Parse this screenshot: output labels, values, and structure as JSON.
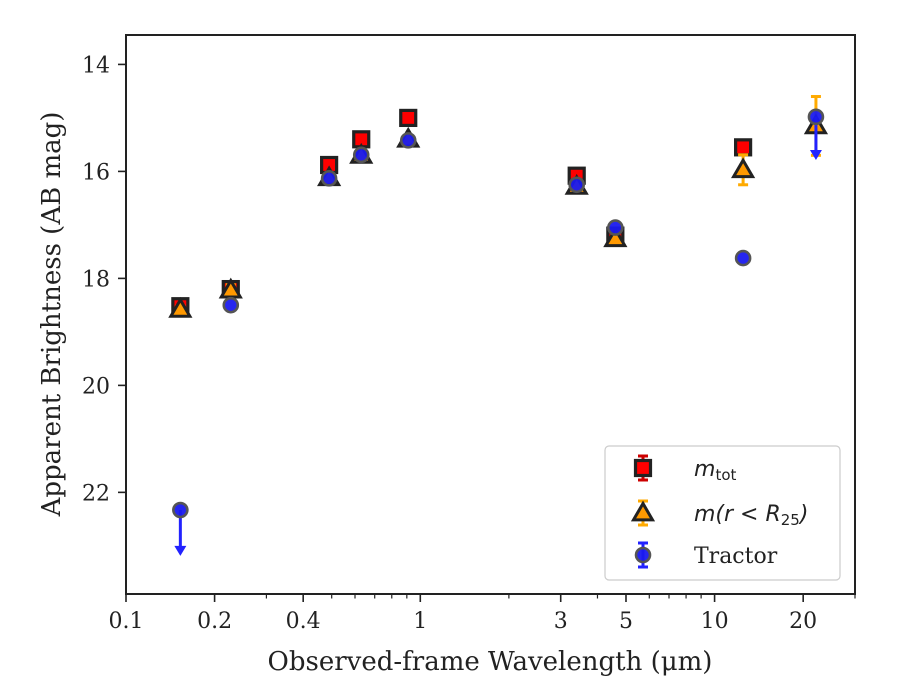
{
  "chart_data": {
    "type": "scatter",
    "title": "",
    "xlabel": "Observed-frame Wavelength (μm)",
    "ylabel": "Apparent Brightness (AB mag)",
    "xscale": "log",
    "xlim": [
      0.1,
      30
    ],
    "ylim": [
      23.9,
      13.45
    ],
    "y_inverted": true,
    "grid": false,
    "legend_position": "lower-right",
    "x_ticks": [
      {
        "value": 0.1,
        "label": "0.1"
      },
      {
        "value": 0.2,
        "label": "0.2"
      },
      {
        "value": 0.4,
        "label": "0.4"
      },
      {
        "value": 1,
        "label": "1"
      },
      {
        "value": 3,
        "label": "3"
      },
      {
        "value": 5,
        "label": "5"
      },
      {
        "value": 10,
        "label": "10"
      },
      {
        "value": 20,
        "label": "20"
      }
    ],
    "y_ticks": [
      {
        "value": 14,
        "label": "14"
      },
      {
        "value": 16,
        "label": "16"
      },
      {
        "value": 18,
        "label": "18"
      },
      {
        "value": 20,
        "label": "20"
      },
      {
        "value": 22,
        "label": "22"
      }
    ],
    "series": [
      {
        "name": "m_tot",
        "legend_main": "m",
        "legend_sub": "tot",
        "marker": "square",
        "face_color": "#ff0000",
        "edge_color": "#222222",
        "error_color": "#cc0000",
        "points": [
          {
            "x": 0.153,
            "y": 18.52,
            "err": 0.06
          },
          {
            "x": 0.227,
            "y": 18.2,
            "err": 0.05
          },
          {
            "x": 0.49,
            "y": 15.88,
            "err": 0.04
          },
          {
            "x": 0.63,
            "y": 15.4,
            "err": 0.04
          },
          {
            "x": 0.91,
            "y": 15.0,
            "err": 0.04
          },
          {
            "x": 3.4,
            "y": 16.08,
            "err": 0.04
          },
          {
            "x": 4.6,
            "y": 17.2,
            "err": 0.05
          },
          {
            "x": 12.5,
            "y": 15.55,
            "err": 0.05
          }
        ]
      },
      {
        "name": "m(r < R_25)",
        "legend_main": "m(r < R",
        "legend_sub": "25",
        "legend_tail": ")",
        "marker": "triangle",
        "face_color": "#ff9900",
        "edge_color": "#222222",
        "error_color": "#ffaa00",
        "points": [
          {
            "x": 0.153,
            "y": 18.58,
            "err": 0.06
          },
          {
            "x": 0.227,
            "y": 18.22,
            "err": 0.1
          },
          {
            "x": 0.49,
            "y": 16.12,
            "err": 0.04
          },
          {
            "x": 0.63,
            "y": 15.7,
            "err": 0.04
          },
          {
            "x": 0.91,
            "y": 15.4,
            "err": 0.04
          },
          {
            "x": 3.4,
            "y": 16.28,
            "err": 0.04
          },
          {
            "x": 4.6,
            "y": 17.26,
            "err": 0.05
          },
          {
            "x": 12.5,
            "y": 15.97,
            "err": 0.28
          },
          {
            "x": 22.1,
            "y": 15.15,
            "err": 0.55
          }
        ]
      },
      {
        "name": "Tractor",
        "legend_main": "Tractor",
        "marker": "circle",
        "face_color": "#1a1aee",
        "edge_color": "#555555",
        "error_color": "#2222ff",
        "points": [
          {
            "x": 0.153,
            "y": 22.33,
            "upper_limit": true,
            "arrow_to": 23.15
          },
          {
            "x": 0.227,
            "y": 18.5
          },
          {
            "x": 0.49,
            "y": 16.13
          },
          {
            "x": 0.63,
            "y": 15.69
          },
          {
            "x": 0.91,
            "y": 15.42
          },
          {
            "x": 3.4,
            "y": 16.25
          },
          {
            "x": 4.6,
            "y": 17.05
          },
          {
            "x": 12.5,
            "y": 17.62
          },
          {
            "x": 22.1,
            "y": 14.98,
            "upper_limit": true,
            "arrow_to": 15.75
          }
        ]
      }
    ]
  }
}
